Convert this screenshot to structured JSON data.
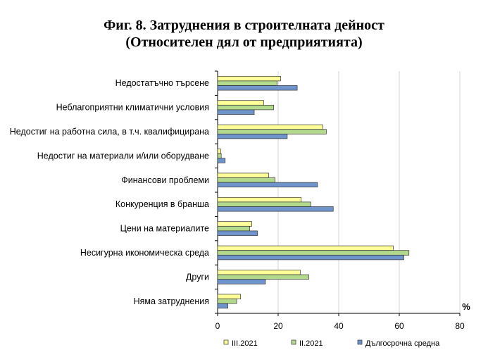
{
  "chart_data": {
    "type": "bar",
    "orientation": "horizontal",
    "title": "Фиг. 8. Затруднения в строителната дейност",
    "subtitle": "(Относителен дял от предприятията)",
    "unit": "%",
    "xlim": [
      0,
      80
    ],
    "xticks": [
      "0",
      "20",
      "40",
      "60",
      "80"
    ],
    "grid": "vertical",
    "legend_position": "bottom",
    "categories": [
      "Недостатъчно търсене",
      "Неблагоприятни климатични условия",
      "Недостиг на работна сила, в т.ч. квалифицирана",
      "Недостиг на материали и/или оборудване",
      "Финансови проблеми",
      "Конкуренция в бранша",
      "Цени на материалите",
      "Несигурна икономическа среда",
      "Други",
      "Няма затруднения"
    ],
    "series": [
      {
        "name": "III.2021",
        "color": "#ffff99",
        "values": [
          20.8,
          15.2,
          34.7,
          1.0,
          16.9,
          27.6,
          11.3,
          58.0,
          27.3,
          7.6
        ]
      },
      {
        "name": "II.2021",
        "color": "#b3d98c",
        "values": [
          19.6,
          18.5,
          35.9,
          1.2,
          19.0,
          30.8,
          10.6,
          63.2,
          30.1,
          6.3
        ]
      },
      {
        "name": "Дългосрочна средна",
        "color": "#6f94cc",
        "values": [
          26.3,
          12.1,
          23.0,
          2.5,
          33.0,
          38.2,
          13.2,
          61.5,
          15.8,
          3.4
        ]
      }
    ]
  }
}
